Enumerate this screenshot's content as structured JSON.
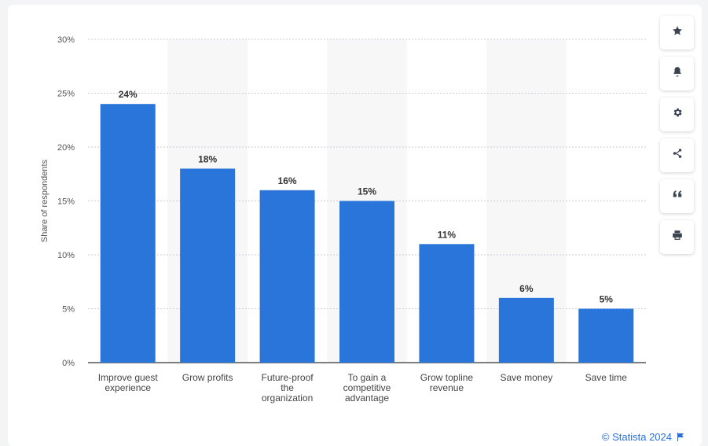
{
  "chart_data": {
    "type": "bar",
    "categories": [
      [
        "Improve guest",
        "experience"
      ],
      [
        "Grow profits"
      ],
      [
        "Future-proof",
        "the",
        "organization"
      ],
      [
        "To gain a",
        "competitive",
        "advantage"
      ],
      [
        "Grow topline",
        "revenue"
      ],
      [
        "Save money"
      ],
      [
        "Save time"
      ]
    ],
    "values": [
      24,
      18,
      16,
      15,
      11,
      6,
      5
    ],
    "data_labels": [
      "24%",
      "18%",
      "16%",
      "15%",
      "11%",
      "6%",
      "5%"
    ],
    "ylabel": "Share of respondents",
    "ylim": [
      0,
      30
    ],
    "yticks": [
      0,
      5,
      10,
      15,
      20,
      25,
      30
    ],
    "ytick_labels": [
      "0%",
      "5%",
      "10%",
      "15%",
      "20%",
      "25%",
      "30%"
    ],
    "grid": true,
    "bar_color": "#2a75d9",
    "alternating_band_color": "#f7f7f8"
  },
  "toolbar": {
    "buttons": [
      {
        "name": "favorite-button",
        "icon": "star-icon"
      },
      {
        "name": "notification-button",
        "icon": "bell-icon"
      },
      {
        "name": "settings-button",
        "icon": "gear-icon"
      },
      {
        "name": "share-button",
        "icon": "share-icon"
      },
      {
        "name": "cite-button",
        "icon": "quote-icon"
      },
      {
        "name": "print-button",
        "icon": "printer-icon"
      }
    ]
  },
  "credit": {
    "text": "© Statista 2024"
  }
}
